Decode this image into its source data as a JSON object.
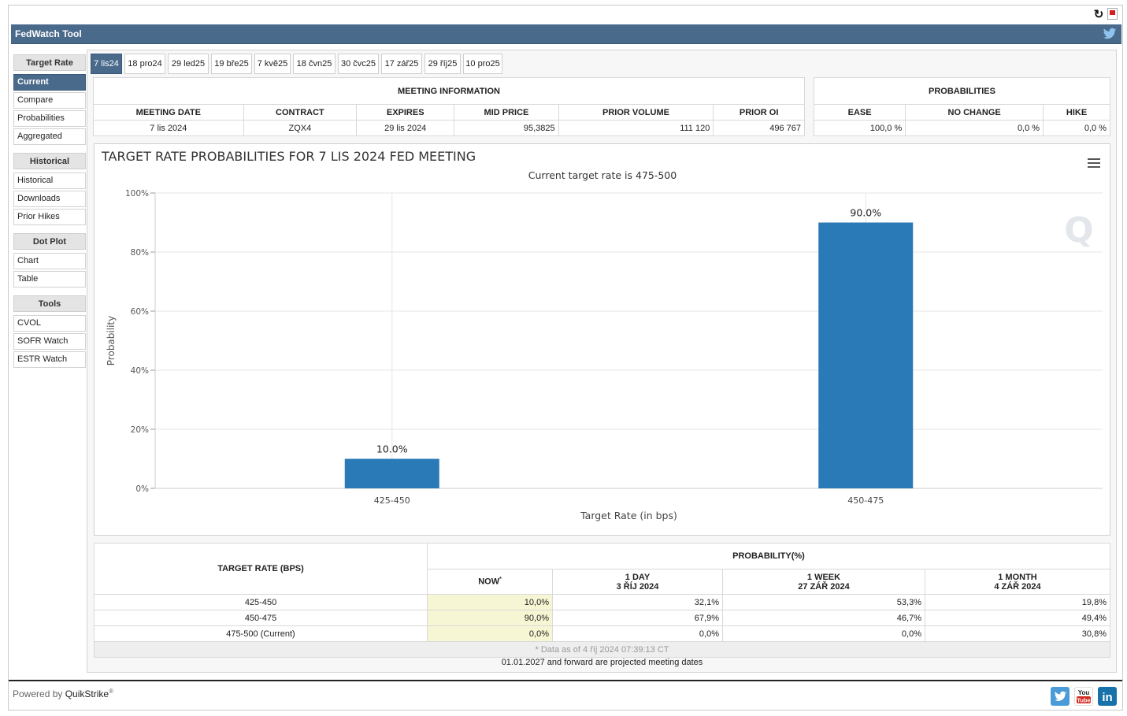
{
  "app": {
    "title": "FedWatch Tool"
  },
  "sidebar": {
    "sections": [
      {
        "heading": "Target Rate",
        "items": [
          "Current",
          "Compare",
          "Probabilities",
          "Aggregated"
        ]
      },
      {
        "heading": "Historical",
        "items": [
          "Historical",
          "Downloads",
          "Prior Hikes"
        ]
      },
      {
        "heading": "Dot Plot",
        "items": [
          "Chart",
          "Table"
        ]
      },
      {
        "heading": "Tools",
        "items": [
          "CVOL",
          "SOFR Watch",
          "ESTR Watch"
        ]
      }
    ],
    "active_item": "Current"
  },
  "tabs": [
    "7 lis24",
    "18 pro24",
    "29 led25",
    "19 bře25",
    "7 kvě25",
    "18 čvn25",
    "30 čvc25",
    "17 zář25",
    "29 říj25",
    "10 pro25"
  ],
  "meeting_info": {
    "heading": "MEETING INFORMATION",
    "columns": [
      "MEETING DATE",
      "CONTRACT",
      "EXPIRES",
      "MID PRICE",
      "PRIOR VOLUME",
      "PRIOR OI"
    ],
    "values": [
      "7 lis 2024",
      "ZQX4",
      "29 lis 2024",
      "95,3825",
      "111 120",
      "496 767"
    ]
  },
  "probabilities": {
    "heading": "PROBABILITIES",
    "columns": [
      "EASE",
      "NO CHANGE",
      "HIKE"
    ],
    "values": [
      "100,0 %",
      "0,0 %",
      "0,0 %"
    ]
  },
  "chart_data": {
    "type": "bar",
    "title": "TARGET RATE PROBABILITIES FOR 7 LIS 2024 FED MEETING",
    "subtitle": "Current target rate is 475-500",
    "xlabel": "Target Rate (in bps)",
    "ylabel": "Probability",
    "categories": [
      "425-450",
      "450-475"
    ],
    "values": [
      10.0,
      90.0
    ],
    "data_labels": [
      "10.0%",
      "90.0%"
    ],
    "ylim": [
      0,
      100
    ],
    "yticks": [
      "0%",
      "20%",
      "40%",
      "60%",
      "80%",
      "100%"
    ],
    "bar_color": "#2a7ab8",
    "grid": true
  },
  "prob_table": {
    "col_rate": "TARGET RATE (BPS)",
    "col_group": "PROBABILITY(%)",
    "col_now": "NOW",
    "col_now_mark": "*",
    "col_day": [
      "1 DAY",
      "3 ŘÍJ 2024"
    ],
    "col_week": [
      "1 WEEK",
      "27 ZÁŘ 2024"
    ],
    "col_month": [
      "1 MONTH",
      "4 ZÁŘ 2024"
    ],
    "rows": [
      {
        "rate": "425-450",
        "now": "10,0%",
        "day": "32,1%",
        "week": "53,3%",
        "month": "19,8%"
      },
      {
        "rate": "450-475",
        "now": "90,0%",
        "day": "67,9%",
        "week": "46,7%",
        "month": "49,4%"
      },
      {
        "rate": "475-500 (Current)",
        "now": "0,0%",
        "day": "0,0%",
        "week": "0,0%",
        "month": "30,8%"
      }
    ],
    "data_as_of": "* Data as of 4 říj 2024 07:39:13 CT"
  },
  "projected_note": "01.01.2027 and forward are projected meeting dates",
  "footer": {
    "powered_by": "Powered by",
    "brand": "QuikStrike",
    "reg": "®"
  },
  "colors": {
    "header_blue": "#4a6a8c",
    "now_highlight": "#f7f6d4",
    "twitter": "#4a9bd8",
    "youtube": "#d42a20",
    "linkedin": "#1672a8"
  }
}
